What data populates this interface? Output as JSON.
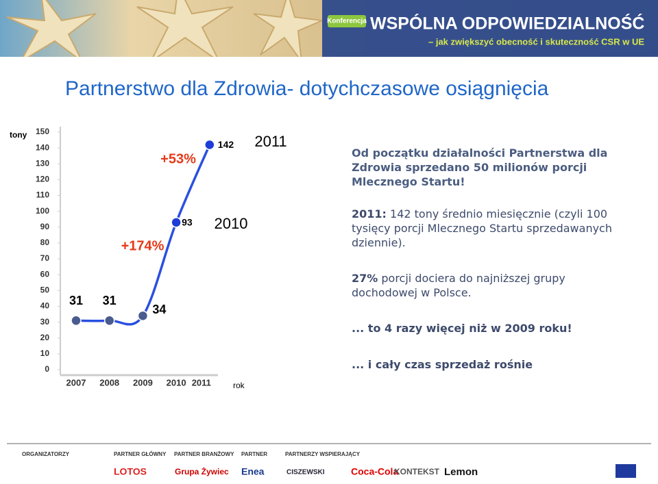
{
  "banner": {
    "badge": "Konferencja",
    "title": "WSPÓLNA ODPOWIEDZIALNOŚĆ",
    "subtitle": "– jak zwiększyć obecność i skuteczność CSR w UE"
  },
  "title": "Partnerstwo dla Zdrowia- dotychczasowe osiągnięcia",
  "chart_data": {
    "type": "line",
    "y_label": "tony",
    "x_label": "rok",
    "categories": [
      "2007",
      "2008",
      "2009",
      "2010",
      "2011"
    ],
    "series": [
      {
        "name": "tony",
        "color": "#2a4fe0",
        "values": [
          31,
          31,
          34,
          93,
          142
        ]
      }
    ],
    "ylim": [
      0,
      150
    ],
    "yticks": [
      0,
      10,
      20,
      30,
      40,
      50,
      60,
      70,
      80,
      90,
      100,
      110,
      120,
      130,
      140,
      150
    ],
    "annotations": [
      "+174%",
      "+53%",
      "2010",
      "2011"
    ]
  },
  "text": {
    "p1": "Od początku działalności Partnerstwa dla Zdrowia sprzedano 50 milionów porcji Mlecznego Startu!",
    "p2_bold": "2011:",
    "p2": " 142 tony średnio miesięcznie (czyli 100 tysięcy porcji Mlecznego Startu sprzedawanych dziennie).",
    "p3_bold": "27%",
    "p3": " porcji dociera do najniższej grupy dochodowej w Polsce.",
    "p4": "... to 4 razy więcej niż w 2009 roku!",
    "p5": "... i cały czas sprzedaż rośnie"
  },
  "footer": {
    "groups": [
      "ORGANIZATORZY",
      "PARTNER GŁÓWNY",
      "PARTNER BRANŻOWY",
      "PARTNER",
      "PARTNERZY WSPIERAJĄCY"
    ],
    "logos": [
      "LOTOS",
      "Grupa Żywiec",
      "Enea",
      "CISZEWSKI",
      "Coca-Cola",
      "KONTEKST",
      "Lemon"
    ]
  }
}
